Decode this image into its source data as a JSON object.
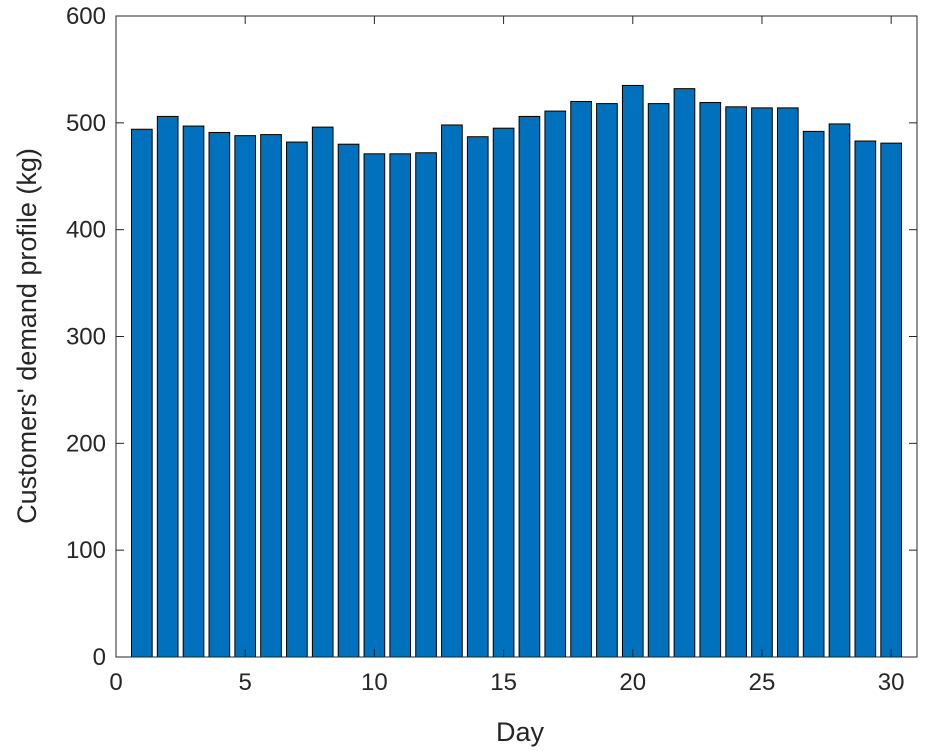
{
  "chart_data": {
    "type": "bar",
    "title": "",
    "xlabel": "Day",
    "ylabel": "Customers' demand profile (kg)",
    "xlim": [
      0,
      31
    ],
    "ylim": [
      0,
      600
    ],
    "xticks": [
      0,
      5,
      10,
      15,
      20,
      25,
      30
    ],
    "yticks": [
      0,
      100,
      200,
      300,
      400,
      500,
      600
    ],
    "grid": false,
    "bar_color": "#0072BD",
    "x": [
      1,
      2,
      3,
      4,
      5,
      6,
      7,
      8,
      9,
      10,
      11,
      12,
      13,
      14,
      15,
      16,
      17,
      18,
      19,
      20,
      21,
      22,
      23,
      24,
      25,
      26,
      27,
      28,
      29,
      30
    ],
    "values": [
      494,
      506,
      497,
      491,
      488,
      489,
      482,
      496,
      480,
      471,
      471,
      472,
      498,
      487,
      495,
      506,
      511,
      520,
      518,
      535,
      518,
      532,
      519,
      515,
      514,
      514,
      492,
      499,
      483,
      481
    ]
  }
}
